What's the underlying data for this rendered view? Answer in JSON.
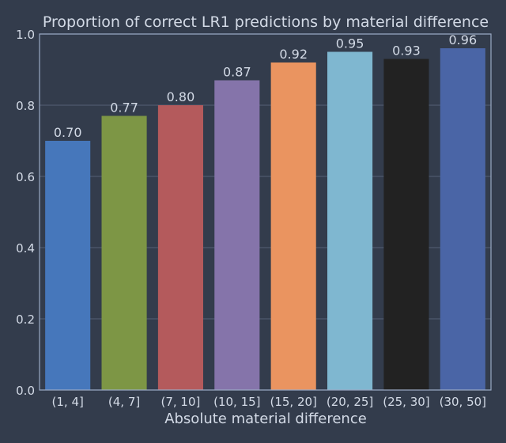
{
  "chart_data": {
    "type": "bar",
    "title": "Proportion of correct LR1 predictions by material difference",
    "xlabel": "Absolute material difference",
    "ylabel": "",
    "categories": [
      "(1, 4]",
      "(4, 7]",
      "(7, 10]",
      "(10, 15]",
      "(15, 20]",
      "(20, 25]",
      "(25, 30]",
      "(30, 50]"
    ],
    "values": [
      0.7,
      0.77,
      0.8,
      0.87,
      0.92,
      0.95,
      0.93,
      0.96
    ],
    "data_labels": [
      "0.70",
      "0.77",
      "0.80",
      "0.87",
      "0.92",
      "0.95",
      "0.93",
      "0.96"
    ],
    "ylim": [
      0,
      1.0
    ],
    "yticks": [
      0.0,
      0.2,
      0.4,
      0.6,
      0.8,
      1.0
    ],
    "ytick_labels": [
      "0.0",
      "0.2",
      "0.4",
      "0.6",
      "0.8",
      "1.0"
    ],
    "grid": true,
    "legend": "none"
  },
  "colors": {
    "background": "#333c4c",
    "plot_border": "#9aa9c4",
    "grid": "#4e5a6e",
    "text": "#d3dae6",
    "bars": [
      "#4677bb",
      "#7d9645",
      "#b45a5c",
      "#8574aa",
      "#ea9460",
      "#7fb7d0",
      "#222222",
      "#4a65a6"
    ]
  }
}
